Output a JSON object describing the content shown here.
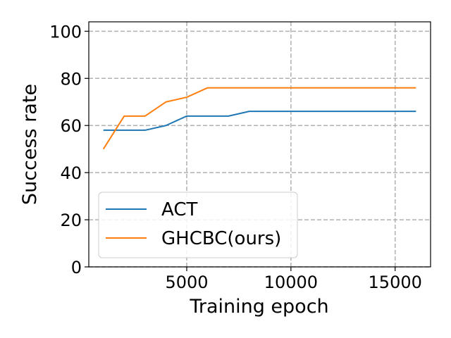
{
  "chart_data": {
    "type": "line",
    "xlabel": "Training epoch",
    "ylabel": "Success rate",
    "xlim": [
      300,
      16700
    ],
    "ylim": [
      0,
      104
    ],
    "xticks": [
      5000,
      10000,
      15000
    ],
    "xtick_labels": [
      "5000",
      "10000",
      "15000"
    ],
    "yticks": [
      0,
      20,
      40,
      60,
      80,
      100
    ],
    "ytick_labels": [
      "0",
      "20",
      "40",
      "60",
      "80",
      "100"
    ],
    "grid": true,
    "legend_position": "lower-left",
    "x": [
      1000,
      2000,
      3000,
      4000,
      5000,
      6000,
      7000,
      8000,
      9000,
      10000,
      11000,
      12000,
      13000,
      14000,
      15000,
      16000
    ],
    "series": [
      {
        "name": "ACT",
        "color": "#1f77b4",
        "values": [
          58,
          58,
          58,
          60,
          64,
          64,
          64,
          66,
          66,
          66,
          66,
          66,
          66,
          66,
          66,
          66
        ]
      },
      {
        "name": "GHCBC(ours)",
        "color": "#ff7f0e",
        "values": [
          50,
          64,
          64,
          70,
          72,
          76,
          76,
          76,
          76,
          76,
          76,
          76,
          76,
          76,
          76,
          76
        ]
      }
    ]
  }
}
